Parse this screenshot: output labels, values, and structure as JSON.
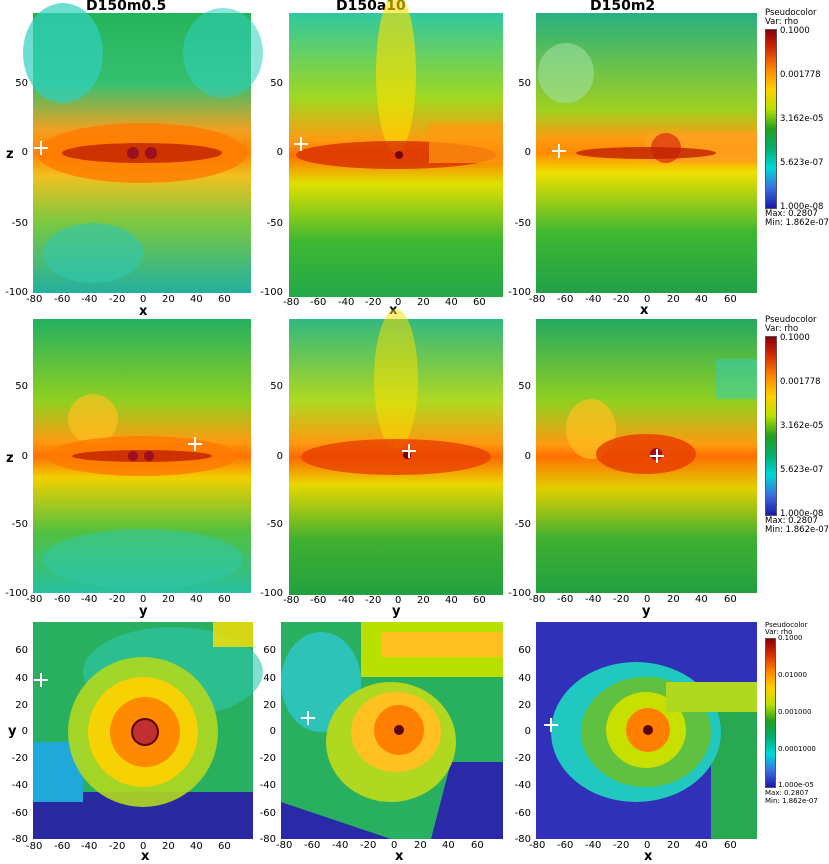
{
  "columns": [
    "D150m0.5",
    "D150a10",
    "D150m2"
  ],
  "rows": [
    {
      "ylabel": "z",
      "xlabel": "x",
      "yticks": [
        "50",
        "0",
        "-50",
        "-100"
      ],
      "xticks": [
        "-80",
        "-60",
        "-40",
        "-20",
        "0",
        "20",
        "40",
        "60"
      ]
    },
    {
      "ylabel": "z",
      "xlabel": "y",
      "yticks": [
        "50",
        "0",
        "-50",
        "-100"
      ],
      "xticks": [
        "-80",
        "-60",
        "-40",
        "-20",
        "0",
        "20",
        "40",
        "60"
      ]
    },
    {
      "ylabel": "y",
      "xlabel": "x",
      "yticks": [
        "60",
        "40",
        "20",
        "0",
        "-20",
        "-40",
        "-60",
        "-80"
      ],
      "xticks": [
        "-80",
        "-60",
        "-40",
        "-20",
        "0",
        "20",
        "40",
        "60"
      ]
    }
  ],
  "colorbars": [
    {
      "title": "Pseudocolor",
      "var": "Var: rho",
      "ticks": [
        "0.1000",
        "0.001778",
        "3.162e-05",
        "5.623e-07",
        "1.000e-08"
      ],
      "max": "Max:  0.2807",
      "min": "Min:  1.862e-07"
    },
    {
      "title": "Pseudocolor",
      "var": "Var: rho",
      "ticks": [
        "0.1000",
        "0.001778",
        "3.162e-05",
        "5.623e-07",
        "1.000e-08"
      ],
      "max": "Max:  0.2807",
      "min": "Min:  1.862e-07"
    },
    {
      "title": "Pseudocolor",
      "var": "Var: rho",
      "ticks": [
        "0.1000",
        "0.01000",
        "0.001000",
        "0.0001000",
        "1.000e-05"
      ],
      "max": "Max: 0.2807",
      "min": "Min: 1.862e-07"
    }
  ],
  "colormap": [
    "#1a1aa8",
    "#3a6fe0",
    "#00d8d8",
    "#00b070",
    "#22a020",
    "#b8e000",
    "#ffd000",
    "#ff8800",
    "#d83000",
    "#8a0008"
  ],
  "background_colors": {
    "edge_green": "#1fae4a",
    "cyan": "#29d3b8",
    "yellow": "#d9e800",
    "orange": "#ff9a10",
    "dark_red": "#8a1010",
    "deep_blue": "#2020a8"
  }
}
